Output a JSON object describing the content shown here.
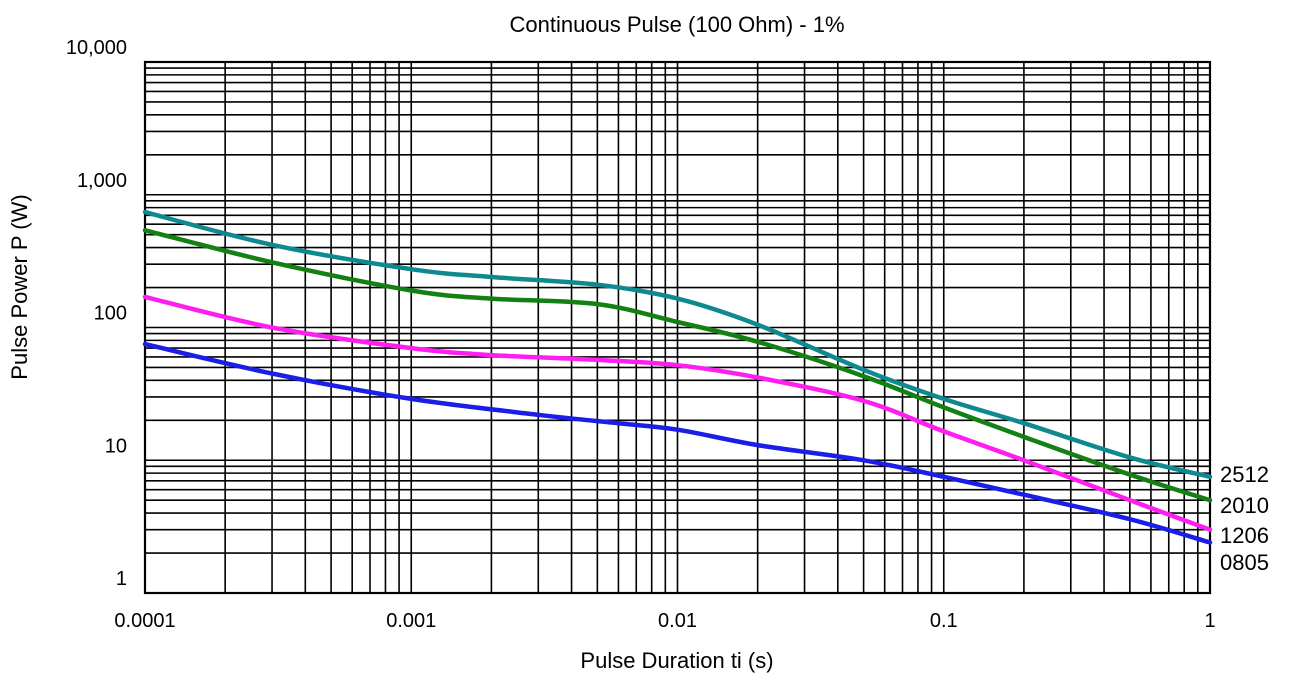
{
  "chart_data": {
    "type": "line",
    "title": "Continuous Pulse (100 Ohm) - 1%",
    "xlabel": "Pulse Duration ti (s)",
    "ylabel": "Pulse Power P (W)",
    "x_scale": "log",
    "y_scale": "log",
    "xlim": [
      0.0001,
      1
    ],
    "ylim": [
      1,
      10000
    ],
    "grid": true,
    "x_ticks": [
      {
        "value": 0.0001,
        "label": "0.0001"
      },
      {
        "value": 0.001,
        "label": "0.001"
      },
      {
        "value": 0.01,
        "label": "0.01"
      },
      {
        "value": 0.1,
        "label": "0.1"
      },
      {
        "value": 1,
        "label": "1"
      }
    ],
    "y_ticks": [
      {
        "value": 1,
        "label": "1"
      },
      {
        "value": 10,
        "label": "10"
      },
      {
        "value": 100,
        "label": "100"
      },
      {
        "value": 1000,
        "label": "1,000"
      },
      {
        "value": 10000,
        "label": "10,000"
      }
    ],
    "series": [
      {
        "name": "2512",
        "color": "#0e8a8f",
        "points": [
          [
            0.0001,
            740
          ],
          [
            0.0003,
            420
          ],
          [
            0.001,
            275
          ],
          [
            0.002,
            240
          ],
          [
            0.005,
            210
          ],
          [
            0.01,
            165
          ],
          [
            0.02,
            105
          ],
          [
            0.05,
            48
          ],
          [
            0.1,
            29
          ],
          [
            0.2,
            19
          ],
          [
            0.5,
            10.5
          ],
          [
            1,
            7.5
          ]
        ]
      },
      {
        "name": "2010",
        "color": "#128012",
        "points": [
          [
            0.0001,
            540
          ],
          [
            0.0003,
            310
          ],
          [
            0.001,
            190
          ],
          [
            0.002,
            165
          ],
          [
            0.005,
            150
          ],
          [
            0.01,
            110
          ],
          [
            0.02,
            78
          ],
          [
            0.05,
            43
          ],
          [
            0.1,
            25
          ],
          [
            0.2,
            15
          ],
          [
            0.5,
            7.8
          ],
          [
            1,
            5
          ]
        ]
      },
      {
        "name": "1206",
        "color": "#ff1ef0",
        "points": [
          [
            0.0001,
            170
          ],
          [
            0.0003,
            100
          ],
          [
            0.001,
            70
          ],
          [
            0.002,
            62
          ],
          [
            0.005,
            57
          ],
          [
            0.01,
            52
          ],
          [
            0.02,
            42
          ],
          [
            0.05,
            28
          ],
          [
            0.1,
            16.5
          ],
          [
            0.2,
            10
          ],
          [
            0.5,
            5
          ],
          [
            1,
            3
          ]
        ]
      },
      {
        "name": "0805",
        "color": "#1b1ee6",
        "points": [
          [
            0.0001,
            75
          ],
          [
            0.0003,
            45
          ],
          [
            0.001,
            29
          ],
          [
            0.003,
            22
          ],
          [
            0.006,
            19
          ],
          [
            0.01,
            17
          ],
          [
            0.02,
            13
          ],
          [
            0.05,
            10
          ],
          [
            0.1,
            7.5
          ],
          [
            0.2,
            5.5
          ],
          [
            0.5,
            3.6
          ],
          [
            1,
            2.4
          ]
        ]
      }
    ]
  }
}
